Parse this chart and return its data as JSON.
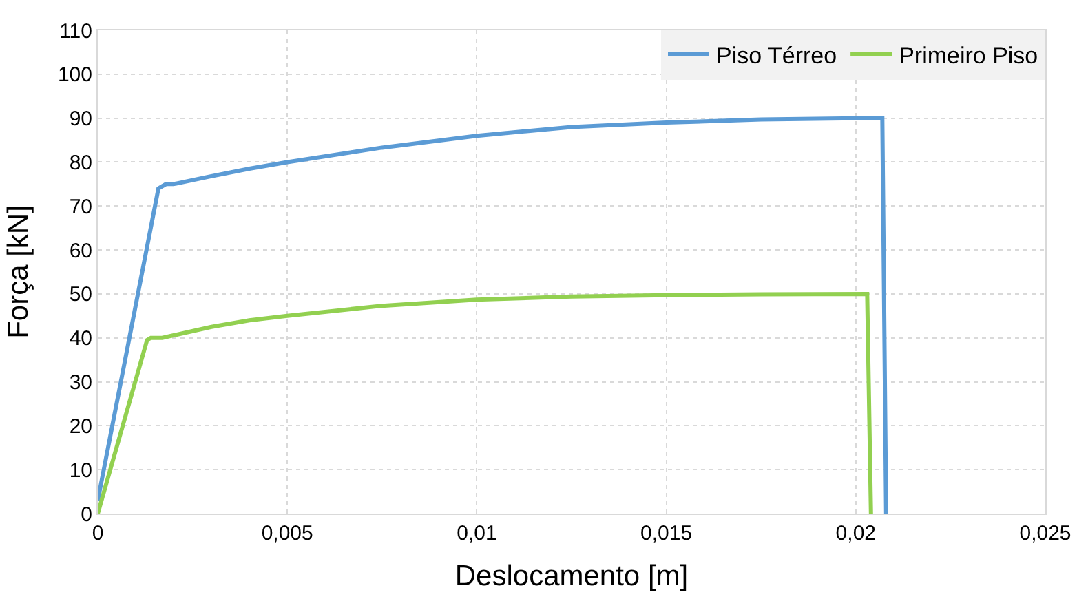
{
  "chart_data": {
    "type": "line",
    "xlabel": "Deslocamento [m]",
    "ylabel": "Força [kN]",
    "xlim": [
      0,
      0.025
    ],
    "ylim": [
      0,
      110
    ],
    "xticks": [
      0,
      {
        "value": 0.005,
        "label": "0,005"
      },
      {
        "value": 0.01,
        "label": "0,01"
      },
      {
        "value": 0.015,
        "label": "0,015"
      },
      {
        "value": 0.02,
        "label": "0,02"
      },
      {
        "value": 0.025,
        "label": "0,025"
      }
    ],
    "yticks": [
      0,
      10,
      20,
      30,
      40,
      50,
      60,
      70,
      80,
      90,
      100,
      110
    ],
    "grid": true,
    "legend": "top right",
    "marker": "none",
    "line_style": "solid",
    "series": [
      {
        "name": "Piso Térreo",
        "color": "#5b9bd5",
        "x": [
          0,
          0.0016,
          0.0018,
          0.002,
          0.003,
          0.004,
          0.005,
          0.0075,
          0.01,
          0.0125,
          0.015,
          0.0175,
          0.02,
          0.0207,
          0.0208
        ],
        "values": [
          3,
          74,
          75,
          75,
          76.8,
          78.5,
          80,
          83.3,
          86,
          88,
          89,
          89.7,
          90,
          90,
          0
        ]
      },
      {
        "name": "Primeiro Piso",
        "color": "#92d050",
        "x": [
          0,
          0.0013,
          0.0014,
          0.0017,
          0.003,
          0.004,
          0.005,
          0.0075,
          0.01,
          0.0125,
          0.015,
          0.0175,
          0.0203,
          0.0204
        ],
        "values": [
          0,
          39.5,
          40,
          40,
          42.5,
          44,
          45,
          47.3,
          48.7,
          49.4,
          49.7,
          49.9,
          50,
          0
        ]
      }
    ]
  }
}
